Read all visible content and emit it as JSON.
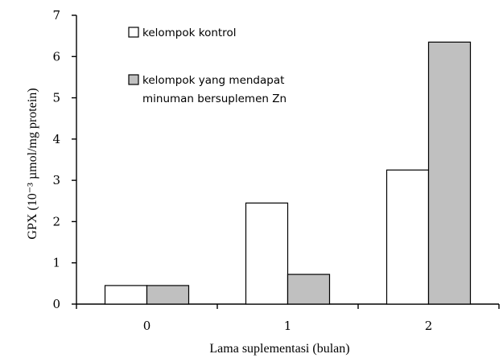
{
  "chart_data": {
    "type": "bar",
    "categories": [
      "0",
      "1",
      "2"
    ],
    "series": [
      {
        "name": "kelompok kontrol",
        "values": [
          0.45,
          2.45,
          3.25
        ],
        "color": "#ffffff"
      },
      {
        "name": "kelompok yang mendapat minuman bersuplemen Zn",
        "legend_lines": [
          "kelompok yang mendapat",
          "minuman bersuplemen Zn"
        ],
        "values": [
          0.45,
          0.72,
          6.35
        ],
        "color": "#c0c0c0"
      }
    ],
    "xlabel": "Lama suplementasi (bulan)",
    "ylabel": "GPX (10⁻³ µmol/mg protein)",
    "ylim": [
      0,
      7
    ],
    "yticks": [
      "0",
      "1",
      "2",
      "3",
      "4",
      "5",
      "6",
      "7"
    ],
    "grid": false,
    "legend_position": "top-left"
  }
}
